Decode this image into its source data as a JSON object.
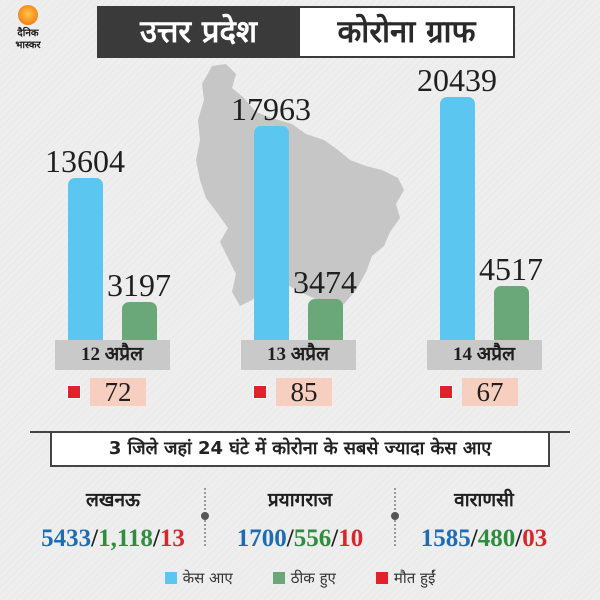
{
  "logo": {
    "name_line1": "दैनिक",
    "name_line2": "भास्कर",
    "icon": "sun-icon"
  },
  "map": {
    "icon": "uttar-pradesh-map-silhouette"
  },
  "colors": {
    "background": "#eeeeee",
    "title_dark": "#3a3a3a",
    "map": "#c6c6c6",
    "date_box": "#c9c9c9",
    "deaths_box": "#f6cfc1",
    "district_cases": "#1e6db4",
    "district_recovered": "#2f8d3f",
    "district_deaths": "#d8262b"
  },
  "chart_data": {
    "type": "bar",
    "title": [
      "उत्तर प्रदेश",
      "कोरोना ग्राफ"
    ],
    "categories": [
      "12 अप्रैल",
      "13 अप्रैल",
      "14 अप्रैल"
    ],
    "series": [
      {
        "name": "केस आए",
        "color": "#5bc6ef",
        "values": [
          13604,
          17963,
          20439
        ]
      },
      {
        "name": "ठीक हुए",
        "color": "#6aa87a",
        "values": [
          3197,
          3474,
          4517
        ]
      },
      {
        "name": "मौत हुईं",
        "color": "#e0232a",
        "values": [
          72,
          85,
          67
        ]
      }
    ],
    "grid": false,
    "legend": "bottom-center"
  },
  "districts": {
    "heading": "3 जिले जहां 24 घंटे में कोरोना के सबसे ज्यादा केस आए",
    "separator": "/",
    "items": [
      {
        "name": "लखनऊ",
        "cases": "5433",
        "recovered": "1,118",
        "deaths": "13"
      },
      {
        "name": "प्रयागराज",
        "cases": "1700",
        "recovered": "556",
        "deaths": "10"
      },
      {
        "name": "वाराणसी",
        "cases": "1585",
        "recovered": "480",
        "deaths": "03"
      }
    ]
  }
}
